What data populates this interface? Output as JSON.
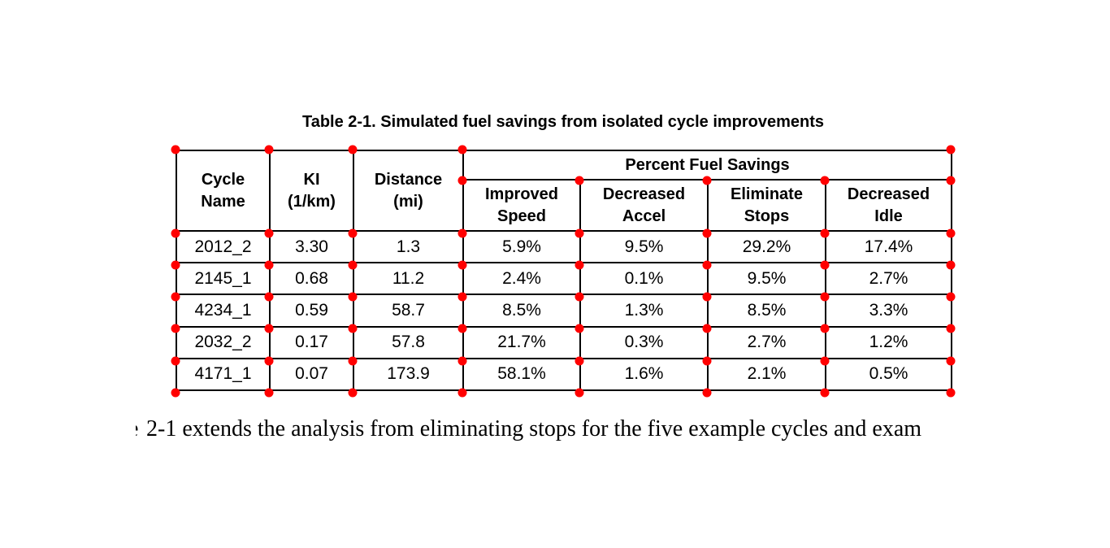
{
  "caption": "Table 2-1. Simulated fuel savings from isolated cycle improvements",
  "table": {
    "headers": {
      "cycle_name": "Cycle\nName",
      "ki": "KI\n(1/km)",
      "distance": "Distance\n(mi)",
      "percent_fuel_savings": "Percent Fuel Savings",
      "improved_speed": "Improved\nSpeed",
      "decreased_accel": "Decreased\nAccel",
      "eliminate_stops": "Eliminate\nStops",
      "decreased_idle": "Decreased\nIdle"
    },
    "rows": [
      [
        "2012_2",
        "3.30",
        "1.3",
        "5.9%",
        "9.5%",
        "29.2%",
        "17.4%"
      ],
      [
        "2145_1",
        "0.68",
        "11.2",
        "2.4%",
        "0.1%",
        "9.5%",
        "2.7%"
      ],
      [
        "4234_1",
        "0.59",
        "58.7",
        "8.5%",
        "1.3%",
        "8.5%",
        "3.3%"
      ],
      [
        "2032_2",
        "0.17",
        "57.8",
        "21.7%",
        "0.3%",
        "2.7%",
        "1.2%"
      ],
      [
        "4171_1",
        "0.07",
        "173.9",
        "58.1%",
        "1.6%",
        "2.1%",
        "0.5%"
      ]
    ]
  },
  "paragraph": {
    "clipped_prefix": "e",
    "text": "2-1 extends the analysis from eliminating stops for the five example cycles and exam"
  },
  "colors": {
    "marker": "#ff0000",
    "grid_line": "#000000",
    "text": "#000000",
    "background": "#ffffff"
  }
}
